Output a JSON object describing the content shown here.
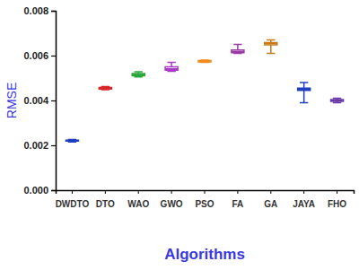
{
  "chart_data": {
    "type": "box",
    "x_label": "Algorithms",
    "y_label": "RMSE",
    "categories": [
      "DWDTO",
      "DTO",
      "WAO",
      "GWO",
      "PSO",
      "FA",
      "GA",
      "JAYA",
      "FHO"
    ],
    "boxes": [
      {
        "min": 0.00215,
        "q1": 0.00219,
        "median": 0.0022,
        "q3": 0.00223,
        "max": 0.00226
      },
      {
        "min": 0.00448,
        "q1": 0.00451,
        "median": 0.00455,
        "q3": 0.00458,
        "max": 0.00462
      },
      {
        "min": 0.00505,
        "q1": 0.0051,
        "median": 0.00515,
        "q3": 0.0052,
        "max": 0.00528
      },
      {
        "min": 0.0053,
        "q1": 0.00535,
        "median": 0.0054,
        "q3": 0.0055,
        "max": 0.0057
      },
      {
        "min": 0.0057,
        "q1": 0.00572,
        "median": 0.00575,
        "q3": 0.00578,
        "max": 0.0058
      },
      {
        "min": 0.0061,
        "q1": 0.00613,
        "median": 0.00617,
        "q3": 0.00625,
        "max": 0.0065
      },
      {
        "min": 0.0061,
        "q1": 0.00648,
        "median": 0.00655,
        "q3": 0.00658,
        "max": 0.0067
      },
      {
        "min": 0.0039,
        "q1": 0.00445,
        "median": 0.0045,
        "q3": 0.00455,
        "max": 0.0048
      },
      {
        "min": 0.0039,
        "q1": 0.00396,
        "median": 0.004,
        "q3": 0.00404,
        "max": 0.0041
      }
    ],
    "colors": [
      "#1f3fbf",
      "#d8262b",
      "#2aa63a",
      "#a83cc7",
      "#f08a1c",
      "#9b3aa6",
      "#c47a1a",
      "#1f3fbf",
      "#6b3aa8"
    ],
    "ylim": [
      0,
      0.008
    ],
    "yticks": [
      {
        "value": 0,
        "label": "0.000"
      },
      {
        "value": 0.002,
        "label": "0.002"
      },
      {
        "value": 0.004,
        "label": "0.004"
      },
      {
        "value": 0.006,
        "label": "0.006"
      },
      {
        "value": 0.008,
        "label": "0.008"
      }
    ],
    "grid": false
  }
}
